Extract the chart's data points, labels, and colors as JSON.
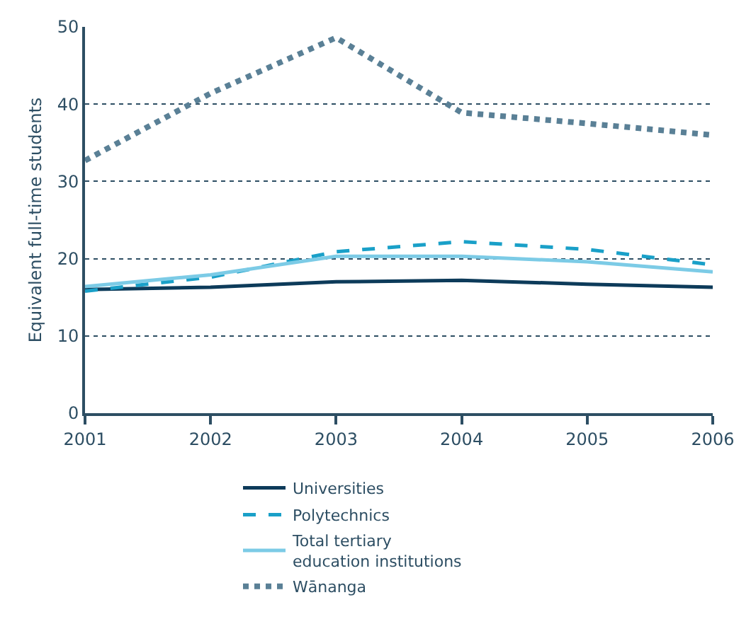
{
  "chart_data": {
    "type": "line",
    "ylabel": "Equivalent full-time students",
    "x": [
      2001,
      2002,
      2003,
      2004,
      2005,
      2006
    ],
    "series": [
      {
        "name": "Universities",
        "color": "#0d3b5a",
        "line_style": "solid",
        "values": [
          16.0,
          16.3,
          17.0,
          17.2,
          16.7,
          16.3
        ]
      },
      {
        "name": "Polytechnics",
        "color": "#1aa0c8",
        "line_style": "dashed",
        "values": [
          15.8,
          17.6,
          20.9,
          22.2,
          21.2,
          19.2
        ]
      },
      {
        "name": "Total tertiary education institutions",
        "color": "#7ccbe6",
        "line_style": "solid",
        "values": [
          16.4,
          17.9,
          20.3,
          20.3,
          19.6,
          18.3
        ]
      },
      {
        "name": "Wānanga",
        "color": "#5a8096",
        "line_style": "dotted",
        "values": [
          32.7,
          41.4,
          48.6,
          38.9,
          37.5,
          36.0
        ]
      }
    ],
    "xlim": [
      2001,
      2006
    ],
    "xticks": [
      2001,
      2002,
      2003,
      2004,
      2005,
      2006
    ],
    "ylim": [
      0,
      50
    ],
    "yticks": [
      0,
      10,
      20,
      30,
      40,
      50
    ],
    "grid": "y",
    "legend": "bottom",
    "marker": "none"
  }
}
